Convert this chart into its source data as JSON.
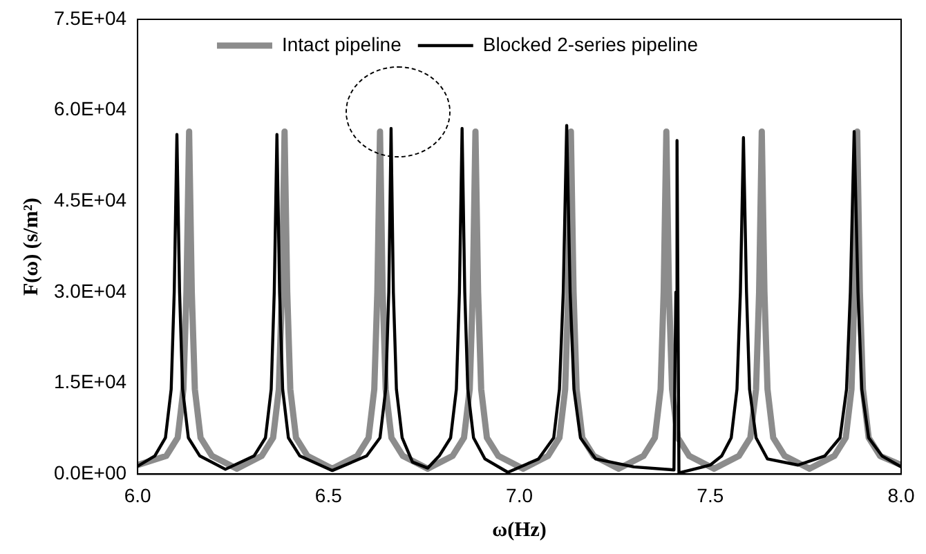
{
  "chart_data": {
    "type": "line",
    "xlabel": "ω(Hz)",
    "ylabel": "F(ω) (s/m²)",
    "xlim": [
      6.0,
      8.0
    ],
    "xticks": [
      {
        "value": 6,
        "label": "6.0"
      },
      {
        "value": 6.5,
        "label": "6.5"
      },
      {
        "value": 7,
        "label": "7.0"
      },
      {
        "value": 7.5,
        "label": "7.5"
      },
      {
        "value": 8,
        "label": "8.0"
      }
    ],
    "ylim": [
      0,
      75000
    ],
    "yticks": [
      {
        "value": 0,
        "label": "0.0E+00"
      },
      {
        "value": 15000,
        "label": "1.5E+04"
      },
      {
        "value": 30000,
        "label": "3.0E+04"
      },
      {
        "value": 45000,
        "label": "4.5E+04"
      },
      {
        "value": 60000,
        "label": "6.0E+04"
      },
      {
        "value": 75000,
        "label": "7.5E+04"
      }
    ],
    "grid": false,
    "legend": "top",
    "marker": "none",
    "line_style": "solid",
    "series": [
      {
        "name": "Intact pipeline",
        "color": "#8c8c8c",
        "x": [
          6.0,
          6.075,
          6.105,
          6.12,
          6.128,
          6.135,
          6.142,
          6.15,
          6.165,
          6.195,
          6.26,
          6.325,
          6.355,
          6.37,
          6.378,
          6.385,
          6.392,
          6.4,
          6.415,
          6.445,
          6.51,
          6.575,
          6.605,
          6.62,
          6.628,
          6.635,
          6.642,
          6.65,
          6.665,
          6.695,
          6.76,
          6.825,
          6.855,
          6.87,
          6.878,
          6.885,
          6.892,
          6.9,
          6.915,
          6.945,
          7.01,
          7.075,
          7.105,
          7.12,
          7.128,
          7.135,
          7.142,
          7.15,
          7.165,
          7.195,
          7.26,
          7.325,
          7.355,
          7.37,
          7.378,
          7.385,
          7.392,
          7.4,
          7.415,
          7.445,
          7.51,
          7.575,
          7.605,
          7.62,
          7.628,
          7.635,
          7.642,
          7.65,
          7.665,
          7.695,
          7.76,
          7.825,
          7.855,
          7.87,
          7.878,
          7.885,
          7.892,
          7.9,
          7.915,
          7.945,
          8.0
        ],
        "values": [
          1500,
          3000,
          6000,
          14000,
          30000,
          56500,
          30000,
          14000,
          6000,
          3000,
          900,
          3000,
          6000,
          14000,
          30000,
          56500,
          30000,
          14000,
          6000,
          3000,
          900,
          3000,
          6000,
          14000,
          30000,
          56500,
          30000,
          14000,
          6000,
          3000,
          900,
          3000,
          6000,
          14000,
          30000,
          56500,
          30000,
          14000,
          6000,
          3000,
          900,
          3000,
          6000,
          14000,
          30000,
          56500,
          30000,
          14000,
          6000,
          3000,
          900,
          3000,
          6000,
          14000,
          30000,
          56500,
          30000,
          14000,
          6000,
          3000,
          900,
          3000,
          6000,
          14000,
          30000,
          56500,
          30000,
          14000,
          6000,
          3000,
          900,
          3000,
          6000,
          14000,
          30000,
          56500,
          30000,
          14000,
          6000,
          3000,
          1500
        ]
      },
      {
        "name": "Blocked 2-series pipeline",
        "color": "#000000",
        "x": [
          6.0,
          6.045,
          6.073,
          6.088,
          6.096,
          6.103,
          6.11,
          6.118,
          6.133,
          6.163,
          6.23,
          6.305,
          6.335,
          6.35,
          6.358,
          6.365,
          6.372,
          6.38,
          6.395,
          6.425,
          6.51,
          6.6,
          6.635,
          6.65,
          6.658,
          6.664,
          6.67,
          6.678,
          6.693,
          6.72,
          6.76,
          6.79,
          6.82,
          6.835,
          6.843,
          6.85,
          6.857,
          6.865,
          6.88,
          6.91,
          6.97,
          7.05,
          7.09,
          7.105,
          7.115,
          7.124,
          7.133,
          7.143,
          7.16,
          7.2,
          7.3,
          7.405,
          7.407,
          7.41,
          7.413,
          7.418,
          7.5,
          7.53,
          7.555,
          7.57,
          7.579,
          7.587,
          7.595,
          7.603,
          7.62,
          7.65,
          7.73,
          7.8,
          7.84,
          7.857,
          7.867,
          7.877,
          7.887,
          7.897,
          7.915,
          7.95,
          8.0
        ],
        "values": [
          1300,
          3000,
          6000,
          14000,
          30000,
          56000,
          30000,
          14000,
          6000,
          3000,
          800,
          3000,
          6000,
          14000,
          30000,
          56000,
          30000,
          14000,
          6000,
          3000,
          600,
          3000,
          6000,
          14000,
          30000,
          57000,
          30000,
          14000,
          6000,
          2000,
          1000,
          3000,
          6000,
          14000,
          30000,
          57000,
          30000,
          14000,
          6000,
          2500,
          300,
          2500,
          6000,
          14000,
          30000,
          57500,
          30000,
          14000,
          6000,
          2500,
          1200,
          700,
          14000,
          30000,
          55000,
          200,
          1500,
          3000,
          6000,
          14000,
          30000,
          55500,
          30000,
          14000,
          6000,
          2500,
          1500,
          3000,
          6000,
          14000,
          30000,
          56500,
          30000,
          14000,
          6000,
          3000,
          1200
        ]
      }
    ]
  }
}
